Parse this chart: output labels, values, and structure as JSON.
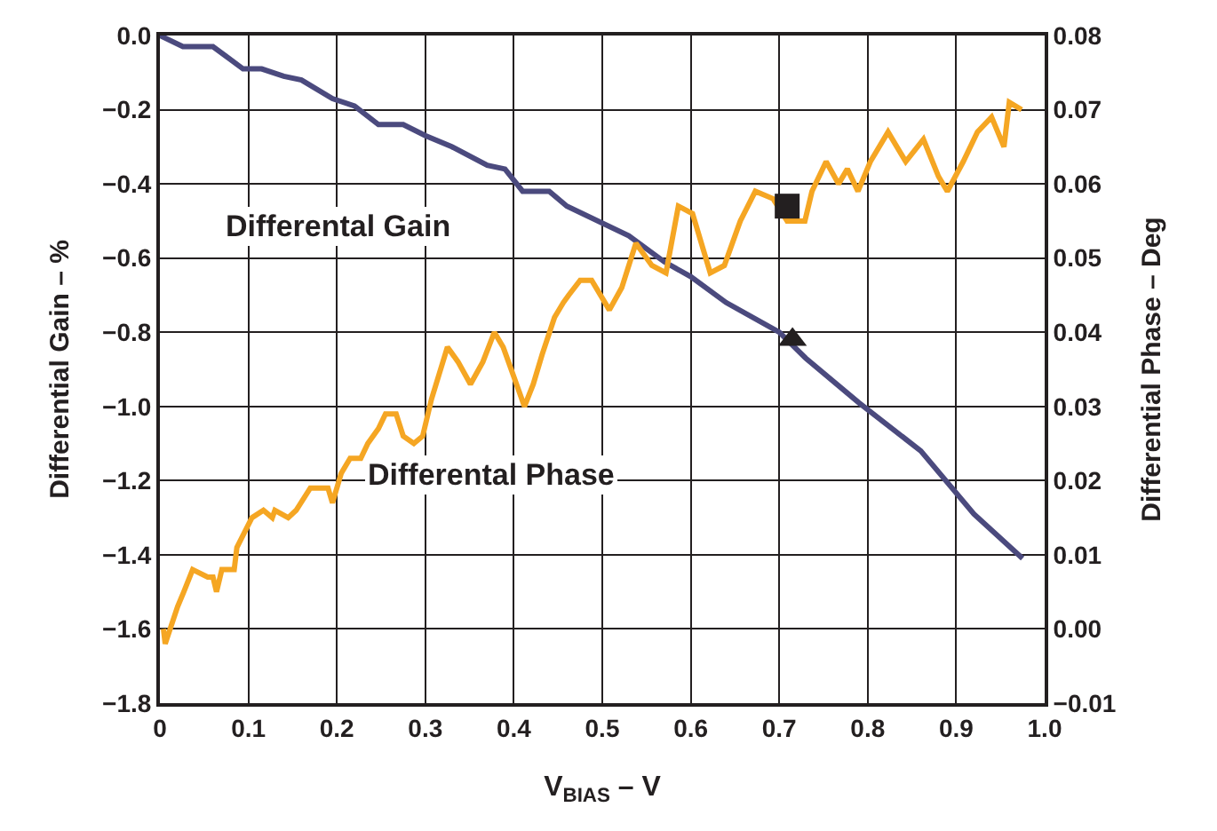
{
  "chart_data": {
    "type": "line",
    "xlabel": "V$_{BIAS}$ – V",
    "ylabel": "Differential Gain – %",
    "y2label": "Differential Phase – Deg",
    "xlim": [
      0,
      1.0
    ],
    "xticks": [
      {
        "value": 0,
        "label": "0"
      },
      0.1,
      0.2,
      0.3,
      0.4,
      0.5,
      0.6,
      0.7,
      0.8,
      0.9,
      {
        "value": 1,
        "label": "1.0"
      }
    ],
    "ylim": [
      -1.8,
      0
    ],
    "yticks": [
      {
        "value": -1.8,
        "label": "−1.8"
      },
      {
        "value": -1.6,
        "label": "−1.6"
      },
      {
        "value": -1.4,
        "label": "−1.4"
      },
      {
        "value": -1.2,
        "label": "−1.2"
      },
      {
        "value": -1.0,
        "label": "−1.0"
      },
      {
        "value": -0.8,
        "label": "−0.8"
      },
      {
        "value": -0.6,
        "label": "−0.6"
      },
      {
        "value": -0.4,
        "label": "−0.4"
      },
      {
        "value": -0.2,
        "label": "−0.2"
      },
      {
        "value": 0,
        "label": "0.0"
      }
    ],
    "y2lim": [
      -0.01,
      0.08
    ],
    "y2ticks": [
      {
        "value": -0.01,
        "label": "−0.01"
      },
      {
        "value": 0,
        "label": "0.00"
      },
      0.01,
      0.02,
      0.03,
      0.04,
      0.05,
      0.06,
      0.07,
      0.08
    ],
    "grid": true,
    "series": [
      {
        "name": "Differental Gain",
        "color": "#4b4a7e",
        "x": [
          0,
          0.026,
          0.06,
          0.094,
          0.115,
          0.14,
          0.16,
          0.195,
          0.22,
          0.247,
          0.275,
          0.3,
          0.33,
          0.37,
          0.39,
          0.41,
          0.44,
          0.46,
          0.53,
          0.57,
          0.6,
          0.64,
          0.7,
          0.73,
          0.79,
          0.86,
          0.92,
          0.975
        ],
        "values": [
          0,
          -0.03,
          -0.03,
          -0.09,
          -0.09,
          -0.11,
          -0.12,
          -0.17,
          -0.19,
          -0.24,
          -0.24,
          -0.27,
          -0.3,
          -0.35,
          -0.36,
          -0.42,
          -0.42,
          -0.46,
          -0.54,
          -0.61,
          -0.65,
          -0.72,
          -0.8,
          -0.87,
          -0.99,
          -1.12,
          -1.29,
          -1.41
        ]
      },
      {
        "name": "Differental Phase",
        "color": "#f5a623",
        "axis": "y2",
        "x": [
          0.004,
          0.006,
          0.02,
          0.027,
          0.037,
          0.054,
          0.06,
          0.064,
          0.07,
          0.084,
          0.087,
          0.104,
          0.117,
          0.127,
          0.13,
          0.145,
          0.154,
          0.17,
          0.19,
          0.195,
          0.205,
          0.215,
          0.227,
          0.235,
          0.247,
          0.255,
          0.267,
          0.275,
          0.287,
          0.297,
          0.307,
          0.325,
          0.337,
          0.351,
          0.365,
          0.378,
          0.388,
          0.4,
          0.412,
          0.422,
          0.432,
          0.446,
          0.456,
          0.462,
          0.475,
          0.488,
          0.508,
          0.522,
          0.538,
          0.556,
          0.572,
          0.586,
          0.602,
          0.622,
          0.638,
          0.656,
          0.673,
          0.693,
          0.709,
          0.729,
          0.737,
          0.753,
          0.767,
          0.777,
          0.789,
          0.803,
          0.823,
          0.843,
          0.863,
          0.88,
          0.89,
          0.908,
          0.924,
          0.94,
          0.954,
          0.96,
          0.974
        ],
        "values": [
          0.0,
          -0.002,
          0.003,
          0.005,
          0.008,
          0.007,
          0.007,
          0.005,
          0.008,
          0.008,
          0.011,
          0.015,
          0.016,
          0.015,
          0.016,
          0.015,
          0.016,
          0.019,
          0.019,
          0.017,
          0.021,
          0.023,
          0.023,
          0.025,
          0.027,
          0.029,
          0.029,
          0.026,
          0.025,
          0.026,
          0.031,
          0.038,
          0.036,
          0.033,
          0.036,
          0.04,
          0.038,
          0.034,
          0.03,
          0.033,
          0.037,
          0.042,
          0.044,
          0.045,
          0.047,
          0.047,
          0.043,
          0.046,
          0.052,
          0.049,
          0.048,
          0.057,
          0.056,
          0.048,
          0.049,
          0.055,
          0.059,
          0.058,
          0.055,
          0.055,
          0.059,
          0.063,
          0.06,
          0.062,
          0.059,
          0.063,
          0.067,
          0.063,
          0.066,
          0.061,
          0.059,
          0.063,
          0.067,
          0.069,
          0.065,
          0.071,
          0.07
        ]
      },
      {
        "type": "scatter",
        "marker": "square",
        "color": "#231f20",
        "axis": "y2",
        "x": [
          0.709
        ],
        "values": [
          0.057
        ]
      },
      {
        "type": "scatter",
        "marker": "triangle",
        "color": "#231f20",
        "x": [
          0.715
        ],
        "values": [
          -0.82
        ]
      }
    ]
  }
}
